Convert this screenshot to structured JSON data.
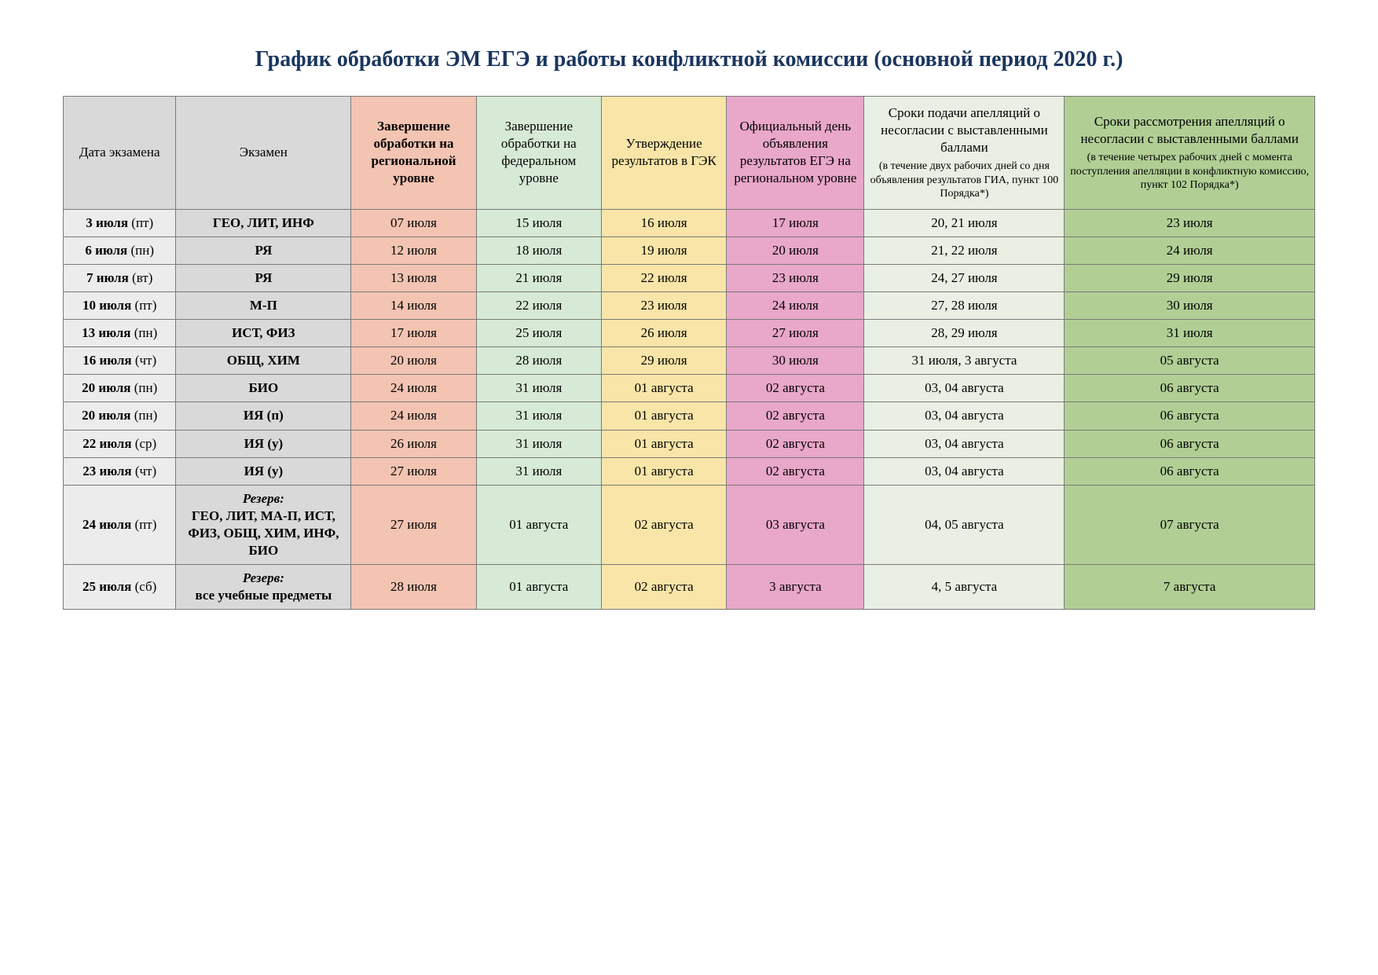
{
  "title": "График обработки ЭМ ЕГЭ и работы конфликтной комиссии (основной период 2020 г.)",
  "title_color": "#1a365f",
  "col_widths": [
    "9%",
    "14%",
    "10%",
    "10%",
    "10%",
    "11%",
    "16%",
    "20%"
  ],
  "header_bg": {
    "c0": "#d9d9d9",
    "c1": "#d9d9d9",
    "c2": "#f4c4b2",
    "c3": "#d7ead5",
    "c4": "#f9e5a8",
    "c5": "#e9a7c9",
    "c6": "#e9f0e3",
    "c7": "#b1cf95"
  },
  "row_bg": {
    "c0": "#ececec",
    "c1": "#d9d9d9",
    "c2": "#f4c4b2",
    "c3": "#d7ead5",
    "c4": "#f9e5a8",
    "c5": "#e9a7c9",
    "c6": "#e9f0e3",
    "c7": "#b1cf95"
  },
  "headers": [
    {
      "main": "Дата экзамена"
    },
    {
      "main": "Экзамен"
    },
    {
      "main": "Завершение обработки на региональной уровне",
      "bold": true
    },
    {
      "main": "Завершение обработки на федеральном уровне"
    },
    {
      "main": "Утверждение результатов в ГЭК"
    },
    {
      "main": "Официальный день объявления результатов ЕГЭ на региональном уровне"
    },
    {
      "main": "Сроки подачи апелляций о несогласии с выставленными баллами",
      "sub": "(в течение двух рабочих дней со дня объявления результатов ГИА, пункт 100 Порядка*)"
    },
    {
      "main": "Сроки рассмотрения апелляций о несогласии с выставленными баллами",
      "sub": "(в течение четырех рабочих дней с момента поступления апелляции в конфликтную комиссию, пункт 102 Порядка*)"
    }
  ],
  "rows": [
    {
      "date_bold": "3 июля",
      "date_paren": "(пт)",
      "exam": "ГЕО, ЛИТ, ИНФ",
      "c2": "07 июля",
      "c3": "15 июля",
      "c4": "16 июля",
      "c5": "17 июля",
      "c6": "20, 21 июля",
      "c7": "23 июля"
    },
    {
      "date_bold": "6 июля",
      "date_paren": "(пн)",
      "exam": "РЯ",
      "c2": "12 июля",
      "c3": "18 июля",
      "c4": "19 июля",
      "c5": "20 июля",
      "c6": "21, 22 июля",
      "c7": "24 июля"
    },
    {
      "date_bold": "7 июля",
      "date_paren": "(вт)",
      "exam": "РЯ",
      "c2": "13 июля",
      "c3": "21 июля",
      "c4": "22 июля",
      "c5": "23 июля",
      "c6": "24, 27 июля",
      "c7": "29 июля"
    },
    {
      "date_bold": "10 июля",
      "date_paren": "(пт)",
      "exam": "М-П",
      "c2": "14 июля",
      "c3": "22 июля",
      "c4": "23 июля",
      "c5": "24 июля",
      "c6": "27, 28 июля",
      "c7": "30 июля"
    },
    {
      "date_bold": "13 июля",
      "date_paren": "(пн)",
      "exam": "ИСТ, ФИЗ",
      "c2": "17 июля",
      "c3": "25 июля",
      "c4": "26 июля",
      "c5": "27 июля",
      "c6": "28, 29 июля",
      "c7": "31 июля"
    },
    {
      "date_bold": "16 июля",
      "date_paren": "(чт)",
      "exam": "ОБЩ, ХИМ",
      "c2": "20 июля",
      "c3": "28 июля",
      "c4": "29 июля",
      "c5": "30 июля",
      "c6": "31 июля, 3 августа",
      "c7": "05 августа"
    },
    {
      "date_bold": "20 июля",
      "date_paren": "(пн)",
      "exam": "БИО",
      "c2": "24 июля",
      "c3": "31 июля",
      "c4": "01 августа",
      "c5": "02 августа",
      "c6": "03, 04 августа",
      "c7": "06 августа"
    },
    {
      "date_bold": "20 июля",
      "date_paren": "(пн)",
      "exam": "ИЯ (п)",
      "c2": "24 июля",
      "c3": "31 июля",
      "c4": "01 августа",
      "c5": "02 августа",
      "c6": "03, 04 августа",
      "c7": "06 августа"
    },
    {
      "date_bold": "22 июля",
      "date_paren": "(ср)",
      "exam": "ИЯ (у)",
      "c2": "26 июля",
      "c3": "31 июля",
      "c4": "01 августа",
      "c5": "02 августа",
      "c6": "03, 04 августа",
      "c7": "06 августа"
    },
    {
      "date_bold": "23 июля",
      "date_paren": "(чт)",
      "exam": "ИЯ (у)",
      "c2": "27 июля",
      "c3": "31 июля",
      "c4": "01 августа",
      "c5": "02 августа",
      "c6": "03, 04 августа",
      "c7": "06 августа"
    },
    {
      "date_bold": "24 июля",
      "date_paren": "(пт)",
      "exam_reserve": "Резерв",
      "exam_body": "ГЕО, ЛИТ, МА-П, ИСТ, ФИЗ, ОБЩ, ХИМ, ИНФ, БИО",
      "c2": "27 июля",
      "c3": "01 августа",
      "c4": "02 августа",
      "c5": "03 августа",
      "c6": "04, 05 августа",
      "c7": "07 августа"
    },
    {
      "date_bold": "25 июля",
      "date_paren": "(сб)",
      "exam_reserve": "Резерв",
      "exam_body": "все учебные предметы",
      "c2": "28 июля",
      "c3": "01 августа",
      "c4": "02 августа",
      "c5": "3 августа",
      "c6": "4, 5 августа",
      "c7": "7 августа"
    }
  ]
}
